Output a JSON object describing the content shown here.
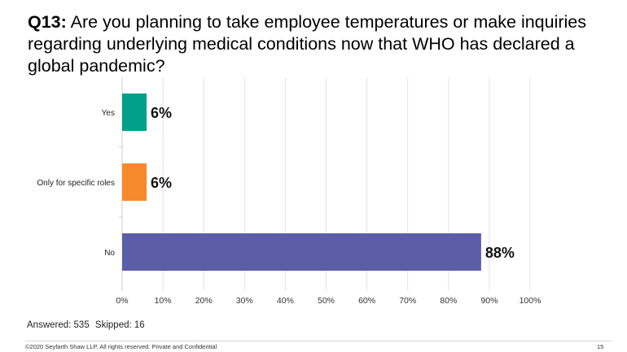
{
  "slide": {
    "question_number": "Q13:",
    "question_text": "Are you planning to take employee temperatures or make inquiries regarding underlying medical conditions now that WHO has declared a global pandemic?",
    "answered_label": "Answered: 535",
    "skipped_label": "Skipped: 16",
    "footer": "©2020 Seyfarth Shaw LLP. All rights reserved. Private and Confidential",
    "page_number": "15"
  },
  "chart_data": {
    "type": "bar",
    "orientation": "horizontal",
    "categories": [
      "Yes",
      "Only for specific roles",
      "No"
    ],
    "values": [
      6,
      6,
      88
    ],
    "value_labels": [
      "6%",
      "6%",
      "88%"
    ],
    "colors": [
      "#00a08a",
      "#f6892b",
      "#5b5ea6"
    ],
    "xlim": [
      0,
      100
    ],
    "ticks": [
      "0%",
      "10%",
      "20%",
      "30%",
      "40%",
      "50%",
      "60%",
      "70%",
      "80%",
      "90%",
      "100%"
    ],
    "grid": true
  }
}
